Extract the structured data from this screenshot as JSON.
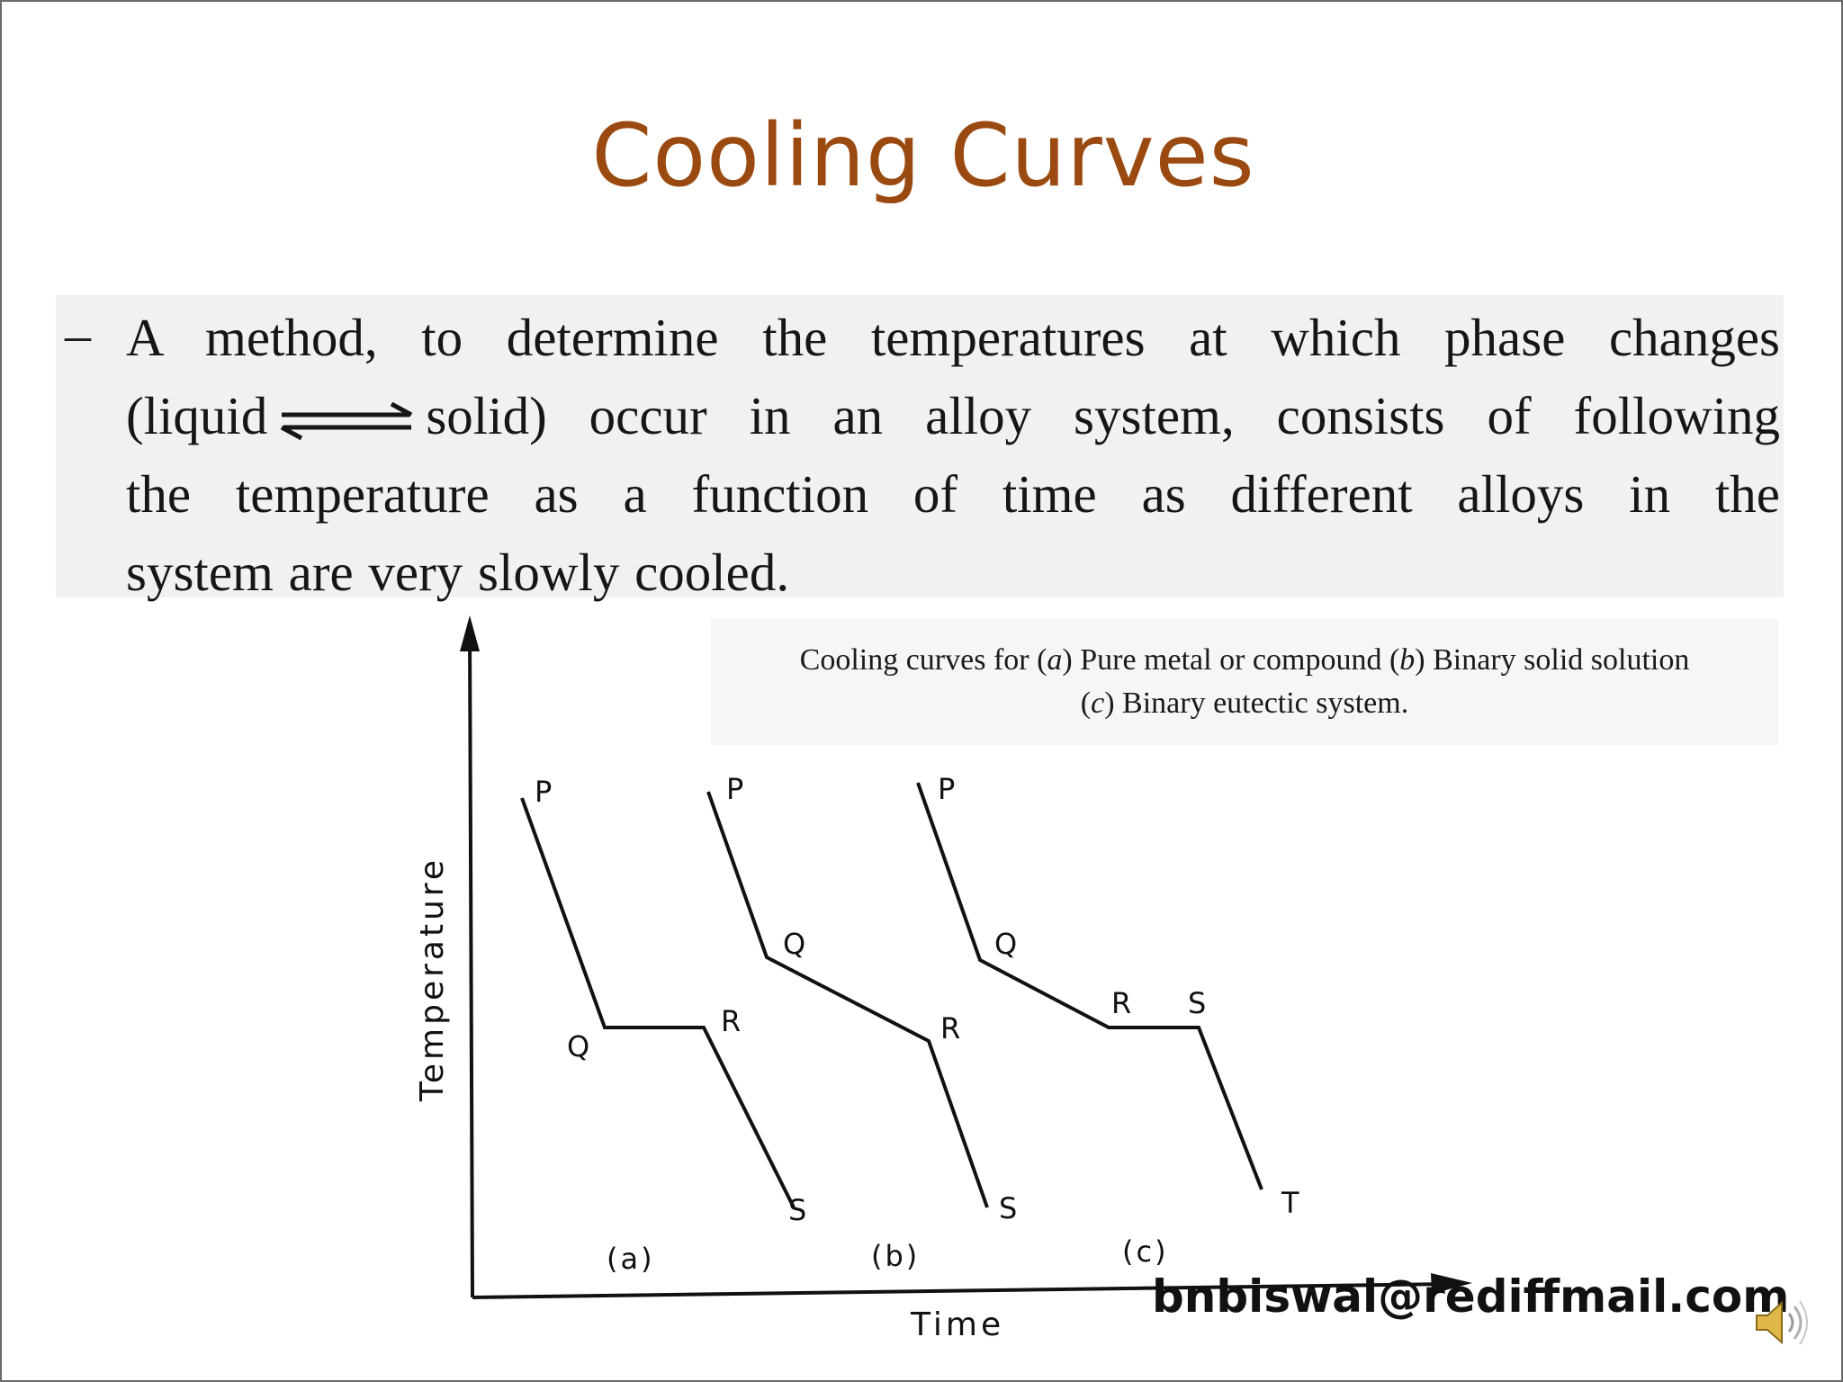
{
  "slide": {
    "title": "Cooling Curves",
    "bullet_dash": "–",
    "paragraph": {
      "line1": "A method, to determine the temperatures at which phase changes",
      "line2_pre": "(liquid",
      "line2_post": "solid) occur in an alloy system, consists of following",
      "line3": "the temperature as a function of time as different alloys in the",
      "line4": "system are very slowly cooled."
    },
    "caption": {
      "line1_a": "Cooling curves for (",
      "a": "a",
      "line1_b": ") Pure metal or compound (",
      "b": "b",
      "line1_c": ") Binary solid solution",
      "line2_a": "(",
      "c": "c",
      "line2_b": ") Binary eutectic system."
    },
    "diagram": {
      "y_axis_label": "Temperature",
      "x_axis_label": "Time",
      "curves": [
        {
          "panel_label": "(a)",
          "points": [
            "P",
            "Q",
            "R",
            "S"
          ]
        },
        {
          "panel_label": "(b)",
          "points": [
            "P",
            "Q",
            "R",
            "S"
          ]
        },
        {
          "panel_label": "(c)",
          "points": [
            "P",
            "Q",
            "R",
            "S",
            "T"
          ]
        }
      ]
    },
    "email": "bnbiswal@rediffmail.com",
    "speaker_icon": "speaker-icon"
  }
}
